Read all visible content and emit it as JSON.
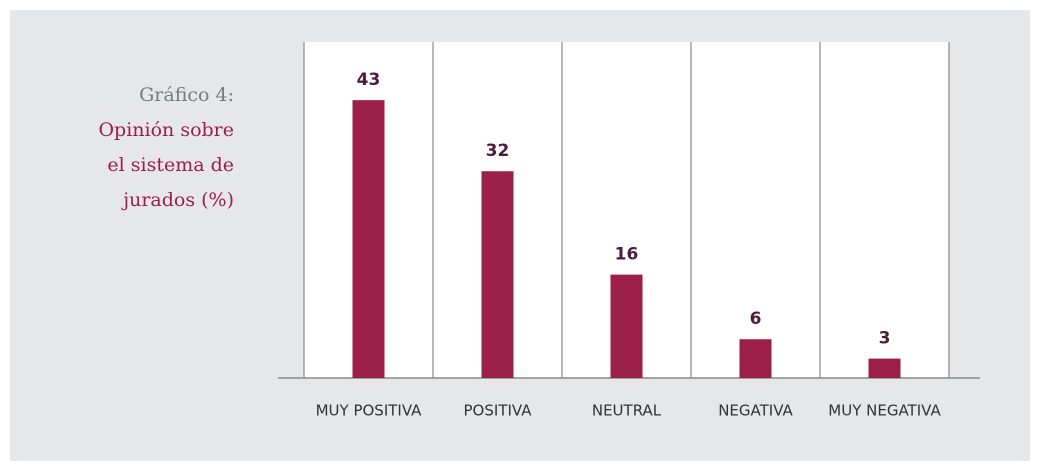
{
  "chart_data": {
    "type": "bar",
    "label": "Gráfico 4:",
    "title": "Opinión sobre el sistema de jurados (%)",
    "categories": [
      "MUY POSITIVA",
      "POSITIVA",
      "NEUTRAL",
      "NEGATIVA",
      "MUY NEGATIVA"
    ],
    "values": [
      43,
      32,
      16,
      6,
      3
    ],
    "color": "#9b1f48",
    "ylim": [
      0,
      52
    ]
  }
}
